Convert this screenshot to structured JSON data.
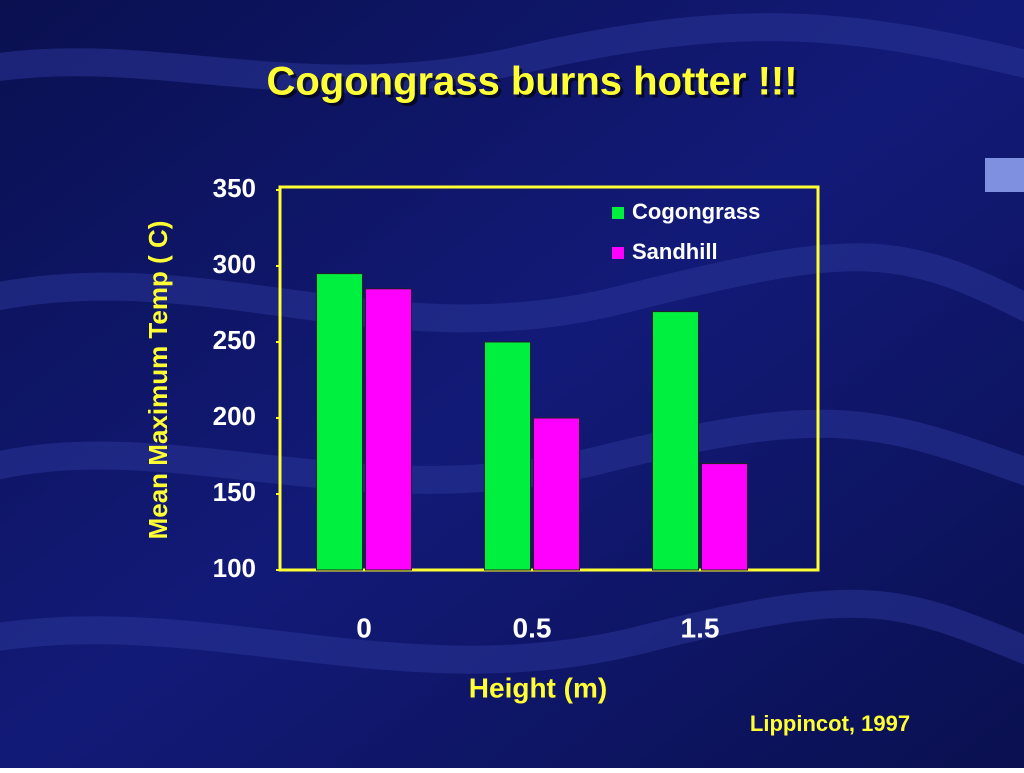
{
  "chart_data": {
    "type": "bar",
    "title": "Cogongrass burns hotter !!!",
    "x_label": "Height (m)",
    "y_label": "Mean Maximum Temp ( C)",
    "categories": [
      "0",
      "0.5",
      "1.5"
    ],
    "series": [
      {
        "name": "Cogongrass",
        "color": "#00f040",
        "values": [
          295,
          250,
          270
        ]
      },
      {
        "name": "Sandhill",
        "color": "#ff00ff",
        "values": [
          285,
          200,
          170
        ]
      }
    ],
    "ylim": [
      100,
      350
    ],
    "yticks": [
      100,
      150,
      200,
      250,
      300,
      350
    ],
    "legend": "upper right",
    "source": "Lippincot, 1997"
  }
}
